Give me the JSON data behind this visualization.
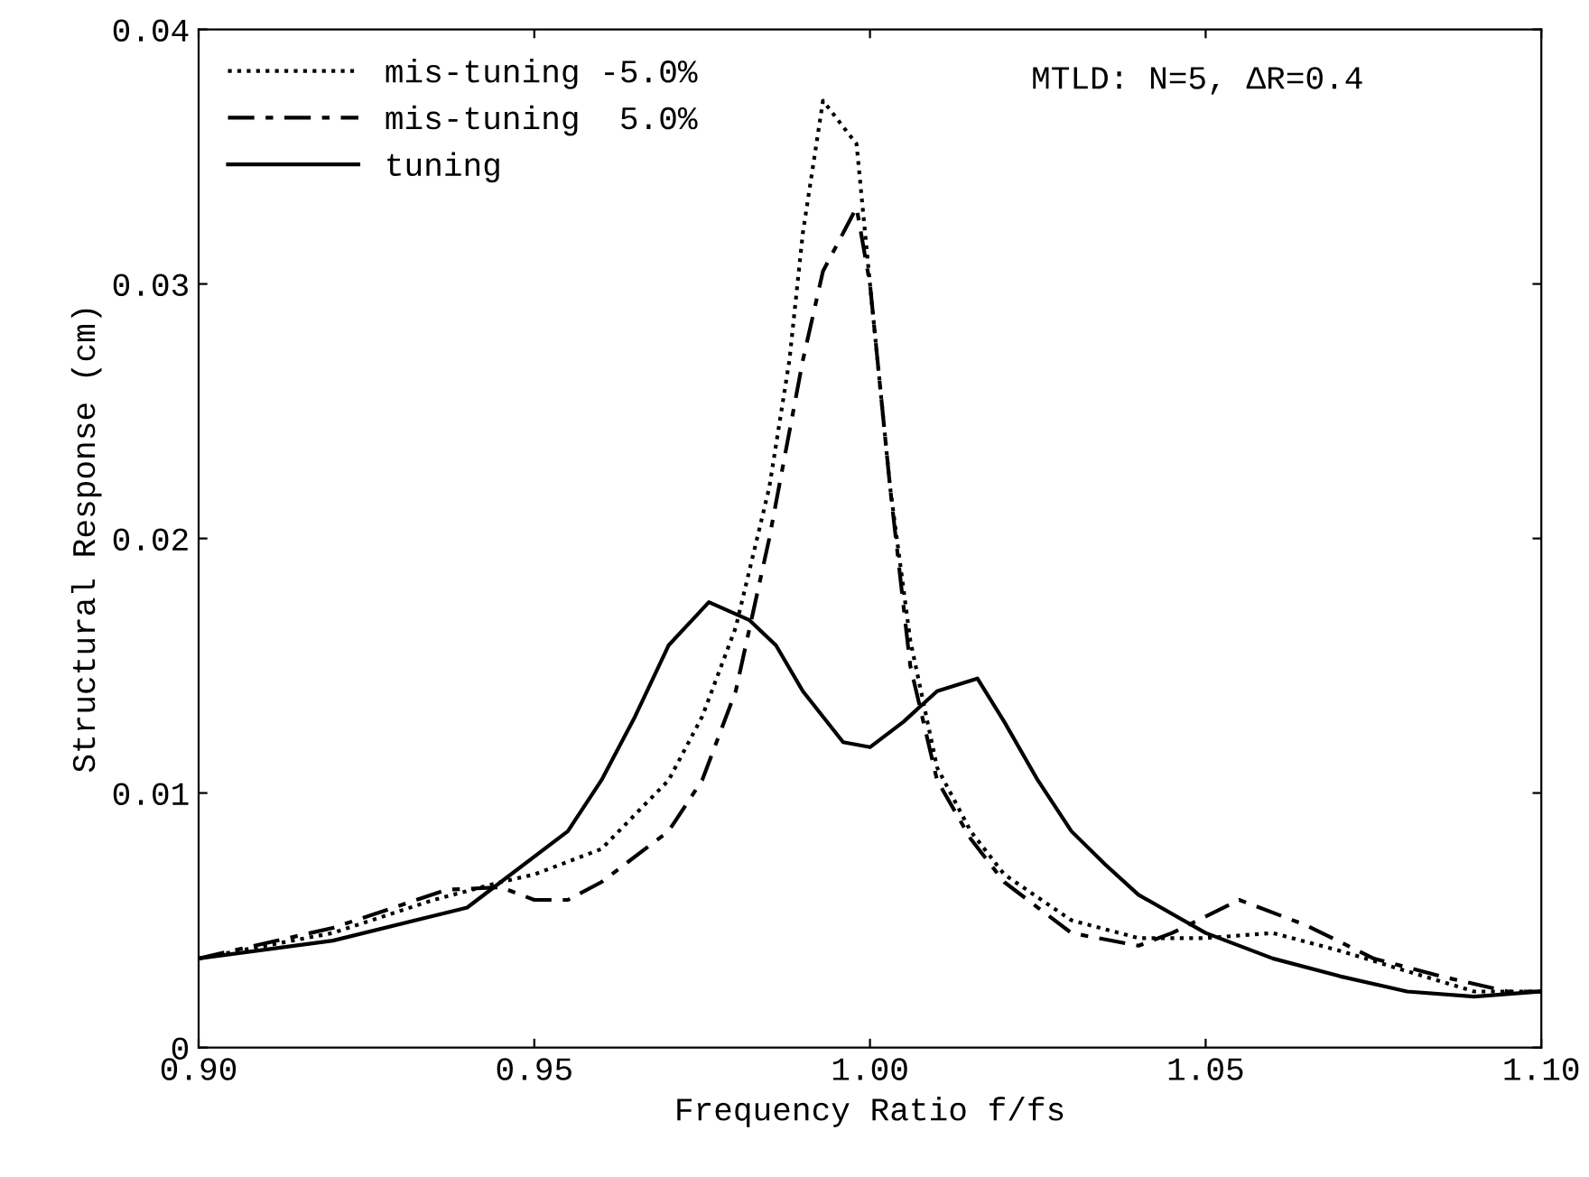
{
  "chart_data": {
    "type": "line",
    "xlabel": "Frequency Ratio f/fs",
    "ylabel": "Structural Response (cm)",
    "annotations": [
      "MTLD: N=5, ΔR=0.4"
    ],
    "xlim": [
      0.9,
      1.1
    ],
    "ylim": [
      0,
      0.04
    ],
    "xticks": [
      {
        "value": 0.9,
        "label": "0.90"
      },
      {
        "value": 0.95,
        "label": "0.95"
      },
      {
        "value": 1.0,
        "label": "1.00"
      },
      {
        "value": 1.05,
        "label": "1.05"
      },
      {
        "value": 1.1,
        "label": "1.10"
      }
    ],
    "yticks": [
      0,
      0.01,
      0.02,
      0.03,
      0.04
    ],
    "grid": false,
    "legend": "top left",
    "marker": "none",
    "series": [
      {
        "name": "mis-tuning -5.0%",
        "color": "#000000",
        "line_style": "dotted",
        "x": [
          0.9,
          0.92,
          0.935,
          0.945,
          0.95,
          0.96,
          0.97,
          0.975,
          0.98,
          0.985,
          0.988,
          0.99,
          0.993,
          0.998,
          1.0,
          1.003,
          1.006,
          1.01,
          1.015,
          1.02,
          1.03,
          1.04,
          1.05,
          1.06,
          1.07,
          1.08,
          1.09,
          1.1
        ],
        "values": [
          0.0035,
          0.0045,
          0.0058,
          0.0065,
          0.0068,
          0.0078,
          0.0105,
          0.013,
          0.0165,
          0.022,
          0.027,
          0.032,
          0.0372,
          0.0355,
          0.03,
          0.022,
          0.016,
          0.011,
          0.0085,
          0.0068,
          0.005,
          0.0043,
          0.0043,
          0.0045,
          0.0038,
          0.003,
          0.0022,
          0.0022
        ]
      },
      {
        "name": "mis-tuning  5.0%",
        "color": "#000000",
        "line_style": "dashed",
        "x": [
          0.9,
          0.92,
          0.937,
          0.945,
          0.95,
          0.955,
          0.96,
          0.97,
          0.975,
          0.98,
          0.985,
          0.99,
          0.993,
          0.998,
          1.0,
          1.003,
          1.006,
          1.01,
          1.015,
          1.02,
          1.03,
          1.04,
          1.045,
          1.055,
          1.065,
          1.075,
          1.085,
          1.095,
          1.1
        ],
        "values": [
          0.0035,
          0.0047,
          0.0062,
          0.0063,
          0.0058,
          0.0058,
          0.0065,
          0.0085,
          0.0105,
          0.014,
          0.02,
          0.027,
          0.0305,
          0.033,
          0.03,
          0.022,
          0.015,
          0.0105,
          0.0082,
          0.0065,
          0.0045,
          0.004,
          0.0045,
          0.0058,
          0.0048,
          0.0035,
          0.0028,
          0.0022,
          0.0022
        ]
      },
      {
        "name": "tuning",
        "color": "#000000",
        "line_style": "solid",
        "x": [
          0.9,
          0.92,
          0.94,
          0.945,
          0.955,
          0.96,
          0.965,
          0.97,
          0.976,
          0.982,
          0.986,
          0.99,
          0.996,
          1.0,
          1.005,
          1.01,
          1.016,
          1.02,
          1.025,
          1.03,
          1.035,
          1.04,
          1.05,
          1.06,
          1.07,
          1.08,
          1.09,
          1.1
        ],
        "values": [
          0.0035,
          0.0042,
          0.0055,
          0.0065,
          0.0085,
          0.0105,
          0.013,
          0.0158,
          0.0175,
          0.0168,
          0.0158,
          0.014,
          0.012,
          0.0118,
          0.0128,
          0.014,
          0.0145,
          0.0128,
          0.0105,
          0.0085,
          0.0072,
          0.006,
          0.0045,
          0.0035,
          0.0028,
          0.0022,
          0.002,
          0.0022
        ]
      }
    ]
  }
}
